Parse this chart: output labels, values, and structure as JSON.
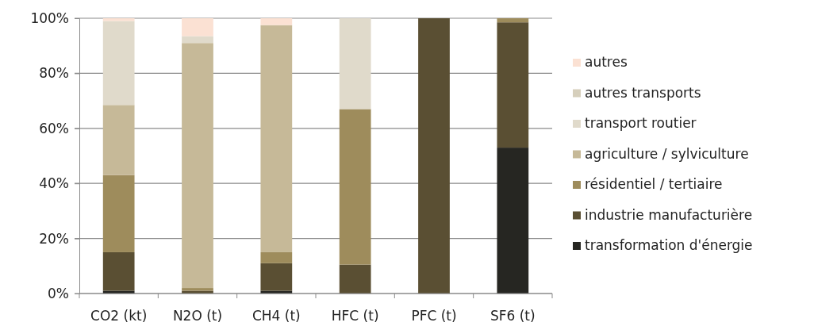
{
  "chart_data": {
    "type": "bar",
    "stacked": true,
    "categories": [
      "CO2 (kt)",
      "N2O (t)",
      "CH4 (t)",
      "HFC (t)",
      "PFC (t)",
      "SF6 (t)"
    ],
    "series": [
      {
        "name": "transformation d'énergie",
        "color": "#262622",
        "values": [
          1,
          0,
          1,
          0,
          0,
          53
        ]
      },
      {
        "name": "industrie manufacturière",
        "color": "#5a4f33",
        "values": [
          14,
          1,
          10,
          10.5,
          100,
          45.5
        ]
      },
      {
        "name": "résidentiel / tertiaire",
        "color": "#9e8c5c",
        "values": [
          28,
          1,
          4,
          56.5,
          0,
          1.5
        ]
      },
      {
        "name": "agriculture / sylviculture",
        "color": "#c6b998",
        "values": [
          25.5,
          89,
          82.5,
          0,
          0,
          0
        ]
      },
      {
        "name": "transport routier",
        "color": "#e0dacb",
        "values": [
          30.5,
          2.5,
          0,
          33,
          0,
          0
        ]
      },
      {
        "name": "autres transports",
        "color": "#d6cfbc",
        "values": [
          0,
          0,
          0,
          0,
          0,
          0
        ]
      },
      {
        "name": "autres",
        "color": "#fbe1d3",
        "values": [
          1,
          6.5,
          2.5,
          0,
          0,
          0
        ]
      }
    ],
    "ylim": [
      0,
      100
    ],
    "yticks": [
      {
        "value": 0,
        "label": "0%"
      },
      {
        "value": 20,
        "label": "20%"
      },
      {
        "value": 40,
        "label": "40%"
      },
      {
        "value": 60,
        "label": "60%"
      },
      {
        "value": 80,
        "label": "80%"
      },
      {
        "value": 100,
        "label": "100%"
      }
    ],
    "grid": "y",
    "legend": "right"
  }
}
